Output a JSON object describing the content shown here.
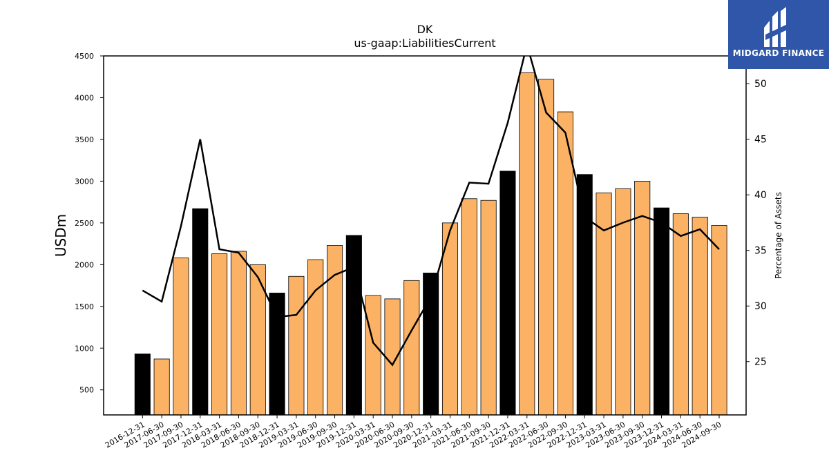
{
  "chart_data": {
    "type": "bar",
    "title": "DK",
    "subtitle": "us-gaap:LiabilitiesCurrent",
    "ylabel": "USDm",
    "y2label": "Percentage of Assets",
    "ylim": [
      200,
      4500
    ],
    "y2lim": [
      20.2,
      52.5
    ],
    "yticks": [
      500,
      1000,
      1500,
      2000,
      2500,
      3000,
      3500,
      4000,
      4500
    ],
    "y2ticks": [
      25,
      30,
      35,
      40,
      45,
      50
    ],
    "categories": [
      "2016-12-31",
      "2017-06-30",
      "2017-09-30",
      "2017-12-31",
      "2018-03-31",
      "2018-06-30",
      "2018-09-30",
      "2018-12-31",
      "2019-03-31",
      "2019-06-30",
      "2019-09-30",
      "2019-12-31",
      "2020-03-31",
      "2020-06-30",
      "2020-09-30",
      "2020-12-31",
      "2021-03-31",
      "2021-06-30",
      "2021-09-30",
      "2021-12-31",
      "2022-03-31",
      "2022-06-30",
      "2022-09-30",
      "2022-12-31",
      "2023-03-31",
      "2023-06-30",
      "2023-09-30",
      "2023-12-31",
      "2024-03-31",
      "2024-06-30",
      "2024-09-30"
    ],
    "series": [
      {
        "type": "bar",
        "values": [
          930,
          870,
          2080,
          2670,
          2130,
          2160,
          2000,
          1660,
          1860,
          2060,
          2230,
          2350,
          1630,
          1590,
          1810,
          1900,
          2500,
          2790,
          2770,
          3120,
          4300,
          4220,
          3830,
          3080,
          2860,
          2910,
          3000,
          2680,
          2610,
          2570,
          2470
        ]
      },
      {
        "type": "line",
        "axis": "right",
        "values": [
          31.4,
          30.4,
          37.2,
          45.0,
          35.1,
          34.8,
          32.6,
          29.0,
          29.2,
          31.4,
          32.8,
          33.5,
          26.7,
          24.7,
          27.8,
          30.8,
          36.8,
          41.1,
          41.0,
          46.5,
          53.5,
          47.4,
          45.6,
          38.0,
          36.8,
          37.5,
          38.1,
          37.5,
          36.3,
          36.9,
          35.1
        ]
      }
    ],
    "annual_color": "#000000",
    "quarter_color": "#fbb264",
    "line_color": "#000000",
    "annual_flags": [
      true,
      false,
      false,
      true,
      false,
      false,
      false,
      true,
      false,
      false,
      false,
      true,
      false,
      false,
      false,
      true,
      false,
      false,
      false,
      true,
      false,
      false,
      false,
      true,
      false,
      false,
      false,
      true,
      false,
      false,
      false
    ]
  },
  "logo": {
    "text": "MIDGARD FINANCE",
    "background": "#2f56a8"
  }
}
